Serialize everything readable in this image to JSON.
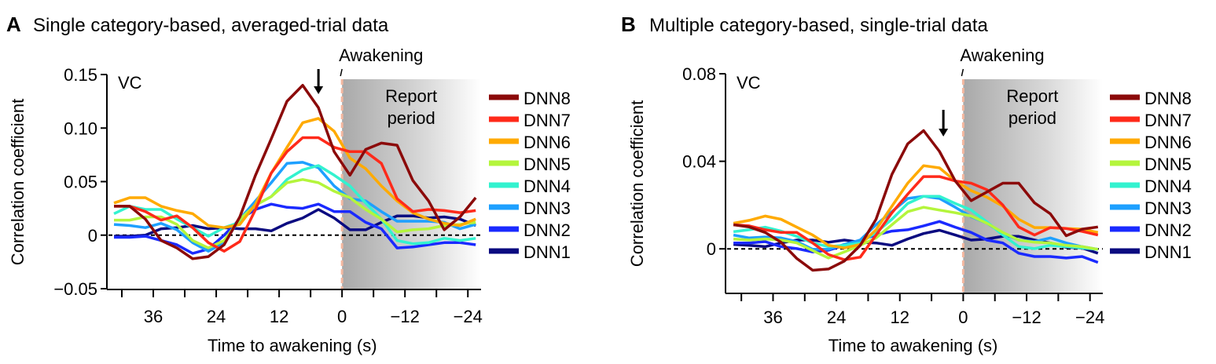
{
  "chart_data": [
    {
      "type": "line",
      "panel_letter": "A",
      "title": "Single category-based, averaged-trial data",
      "region_label": "VC",
      "awakening_label": "Awakening",
      "report_label_lines": [
        "Report",
        "period"
      ],
      "xlabel": "Time to awakening (s)",
      "ylabel": "Correlation coefficient",
      "xlim": [
        45,
        -26
      ],
      "ylim": [
        -0.05,
        0.15
      ],
      "xticks": [
        42,
        36,
        30,
        24,
        18,
        12,
        6,
        0,
        -6,
        -12,
        -18,
        -24
      ],
      "xtick_labels": [
        {
          "v": 36,
          "t": "36"
        },
        {
          "v": 24,
          "t": "24"
        },
        {
          "v": 12,
          "t": "12"
        },
        {
          "v": 0,
          "t": "0"
        },
        {
          "v": -12,
          "t": "−12"
        },
        {
          "v": -24,
          "t": "−24"
        }
      ],
      "yticks": [
        {
          "v": 0.15,
          "t": "0.15"
        },
        {
          "v": 0.1,
          "t": "0.10"
        },
        {
          "v": 0.05,
          "t": "0.05"
        },
        {
          "v": 0,
          "t": "0"
        },
        {
          "v": -0.05,
          "t": "−0.05"
        }
      ],
      "arrow_at": 4.5,
      "report_period": [
        0,
        -26
      ],
      "x": [
        43.5,
        40.5,
        37.5,
        34.5,
        31.5,
        28.5,
        25.5,
        22.5,
        19.5,
        16.5,
        13.5,
        10.5,
        7.5,
        4.5,
        1.5,
        -1.5,
        -4.5,
        -7.5,
        -10.5,
        -13.5,
        -16.5,
        -19.5,
        -22.5,
        -25.5
      ],
      "series": [
        {
          "name": "DNN8",
          "color": "#8b0a0a",
          "values": [
            0.027,
            0.027,
            0.015,
            -0.005,
            -0.012,
            -0.022,
            -0.02,
            -0.009,
            0.017,
            0.056,
            0.09,
            0.125,
            0.14,
            0.119,
            0.078,
            0.056,
            0.08,
            0.086,
            0.084,
            0.051,
            0.032,
            0.005,
            0.017,
            0.035
          ]
        },
        {
          "name": "DNN7",
          "color": "#ff2a1a",
          "values": [
            0.027,
            0.027,
            0.022,
            0.014,
            0.018,
            0.007,
            -0.007,
            -0.015,
            -0.006,
            0.024,
            0.058,
            0.078,
            0.091,
            0.091,
            0.082,
            0.078,
            0.078,
            0.067,
            0.034,
            0.022,
            0.024,
            0.023,
            0.021,
            0.023
          ]
        },
        {
          "name": "DNN6",
          "color": "#ffaa00",
          "values": [
            0.03,
            0.035,
            0.035,
            0.027,
            0.023,
            0.02,
            0.009,
            0.007,
            0.01,
            0.029,
            0.058,
            0.082,
            0.105,
            0.109,
            0.097,
            0.072,
            0.062,
            0.046,
            0.032,
            0.021,
            0.015,
            0.011,
            0.009,
            0.015
          ]
        },
        {
          "name": "DNN5",
          "color": "#b4f53c",
          "values": [
            0.014,
            0.014,
            0.017,
            0.017,
            0.01,
            -0.005,
            -0.012,
            -0.005,
            0.015,
            0.028,
            0.036,
            0.049,
            0.052,
            0.049,
            0.041,
            0.035,
            0.024,
            0.015,
            0.003,
            0.005,
            0.006,
            0.009,
            0.01,
            0.012
          ]
        },
        {
          "name": "DNN4",
          "color": "#33f2cf",
          "values": [
            0.02,
            0.027,
            0.024,
            0.024,
            0.015,
            0.007,
            -0.001,
            0.007,
            0.012,
            0.028,
            0.036,
            0.052,
            0.061,
            0.065,
            0.056,
            0.046,
            0.03,
            0.015,
            -0.005,
            -0.008,
            -0.007,
            -0.003,
            -0.005,
            -0.003
          ]
        },
        {
          "name": "DNN3",
          "color": "#1ea0ff",
          "values": [
            0.01,
            0.009,
            0.007,
            0.011,
            0.005,
            -0.007,
            -0.015,
            -0.007,
            0.015,
            0.032,
            0.049,
            0.067,
            0.068,
            0.063,
            0.046,
            0.034,
            0.032,
            0.022,
            0.013,
            0.013,
            0.013,
            0.012,
            0.006,
            0.01
          ]
        },
        {
          "name": "DNN2",
          "color": "#1a2aff",
          "values": [
            -0.002,
            -0.002,
            -0.001,
            -0.005,
            -0.009,
            -0.017,
            -0.013,
            0.0,
            0.015,
            0.024,
            0.029,
            0.026,
            0.025,
            0.029,
            0.022,
            0.022,
            0.012,
            0.006,
            -0.012,
            -0.011,
            -0.009,
            -0.007,
            -0.007,
            -0.009
          ]
        },
        {
          "name": "DNN1",
          "color": "#0a0a80",
          "values": [
            -0.001,
            -0.001,
            0.0,
            0.006,
            0.007,
            0.009,
            0.006,
            0.007,
            0.006,
            0.006,
            0.004,
            0.011,
            0.016,
            0.024,
            0.016,
            0.005,
            0.005,
            0.012,
            0.018,
            0.018,
            0.016,
            0.017,
            0.015,
            0.009
          ]
        }
      ]
    },
    {
      "type": "line",
      "panel_letter": "B",
      "title": "Multiple category-based, single-trial data",
      "region_label": "VC",
      "awakening_label": "Awakening",
      "report_label_lines": [
        "Report",
        "period"
      ],
      "xlabel": "Time to awakening (s)",
      "ylabel": "Correlation coefficient",
      "xlim": [
        45,
        -26
      ],
      "ylim": [
        -0.02,
        0.08
      ],
      "xticks": [
        42,
        36,
        30,
        24,
        18,
        12,
        6,
        0,
        -6,
        -12,
        -18,
        -24
      ],
      "xtick_labels": [
        {
          "v": 36,
          "t": "36"
        },
        {
          "v": 24,
          "t": "24"
        },
        {
          "v": 12,
          "t": "12"
        },
        {
          "v": 0,
          "t": "0"
        },
        {
          "v": -12,
          "t": "−12"
        },
        {
          "v": -24,
          "t": "−24"
        }
      ],
      "yticks": [
        {
          "v": 0.08,
          "t": "0.08"
        },
        {
          "v": 0.04,
          "t": "0.04"
        },
        {
          "v": 0,
          "t": "0"
        }
      ],
      "arrow_at": 4.5,
      "report_period": [
        0,
        -26
      ],
      "x": [
        43.5,
        40.5,
        37.5,
        34.5,
        31.5,
        28.5,
        25.5,
        22.5,
        19.5,
        16.5,
        13.5,
        10.5,
        7.5,
        4.5,
        1.5,
        -1.5,
        -4.5,
        -7.5,
        -10.5,
        -13.5,
        -16.5,
        -19.5,
        -22.5,
        -25.5
      ],
      "series": [
        {
          "name": "DNN8",
          "color": "#8b0a0a",
          "values": [
            0.011,
            0.01,
            0.0075,
            0.003,
            -0.0044,
            -0.0098,
            -0.0092,
            -0.0056,
            0.0016,
            0.0135,
            0.034,
            0.048,
            0.054,
            0.0445,
            0.031,
            0.022,
            0.026,
            0.03,
            0.03,
            0.021,
            0.016,
            0.006,
            0.009,
            0.01
          ]
        },
        {
          "name": "DNN7",
          "color": "#ff2a1a",
          "values": [
            0.011,
            0.0105,
            0.0087,
            0.0075,
            0.0075,
            0.0027,
            -0.0026,
            -0.005,
            -0.0038,
            0.0063,
            0.0165,
            0.025,
            0.033,
            0.033,
            0.031,
            0.03,
            0.027,
            0.02,
            0.01,
            0.0063,
            0.0097,
            0.0093,
            0.008,
            0.0063
          ]
        },
        {
          "name": "DNN6",
          "color": "#ffaa00",
          "values": [
            0.0117,
            0.013,
            0.015,
            0.0135,
            0.0099,
            0.0063,
            0.0016,
            0.0004,
            0.002,
            0.0087,
            0.0195,
            0.03,
            0.038,
            0.037,
            0.031,
            0.0266,
            0.0236,
            0.0195,
            0.0135,
            0.0097,
            0.0097,
            0.0093,
            0.009,
            0.0075
          ]
        },
        {
          "name": "DNN5",
          "color": "#b4f53c",
          "values": [
            0.0045,
            0.004,
            0.0045,
            0.004,
            0.0027,
            -0.0008,
            -0.0042,
            -0.0014,
            0.0016,
            0.005,
            0.011,
            0.017,
            0.019,
            0.0177,
            0.0165,
            0.015,
            0.0117,
            0.0075,
            0.004,
            0.003,
            0.0027,
            0.0016,
            0.001,
            -0.0002
          ]
        },
        {
          "name": "DNN4",
          "color": "#33f2cf",
          "values": [
            0.0078,
            0.0087,
            0.0099,
            0.0081,
            0.0057,
            0.0027,
            0.001,
            0.0016,
            0.0027,
            0.0075,
            0.0135,
            0.0207,
            0.024,
            0.024,
            0.0207,
            0.0177,
            0.0123,
            0.0063,
            0.001,
            0.0001,
            0.0016,
            0.001,
            0.0004,
            -0.0002
          ]
        },
        {
          "name": "DNN3",
          "color": "#1ea0ff",
          "values": [
            0.0063,
            0.005,
            0.0054,
            0.005,
            0.0033,
            -0.0002,
            -0.0002,
            0.002,
            0.004,
            0.011,
            0.017,
            0.023,
            0.024,
            0.023,
            0.019,
            0.0147,
            0.0117,
            0.007,
            0.004,
            0.0033,
            0.005,
            0.0027,
            0.001,
            -0.0002
          ]
        },
        {
          "name": "DNN2",
          "color": "#1a2aff",
          "values": [
            0.0027,
            0.0027,
            0.0033,
            0.001,
            0.0001,
            -0.0014,
            -0.0006,
            0.0016,
            0.004,
            0.0063,
            0.0081,
            0.0087,
            0.0105,
            0.0125,
            0.0099,
            0.0075,
            0.004,
            0.0027,
            -0.002,
            -0.0035,
            -0.0035,
            -0.0042,
            -0.0035,
            -0.0062
          ]
        },
        {
          "name": "DNN1",
          "color": "#0a0a80",
          "values": [
            0.002,
            0.0016,
            0.001,
            0.0027,
            0.004,
            0.004,
            0.003,
            0.004,
            0.003,
            0.0027,
            0.0016,
            0.0045,
            0.007,
            0.0085,
            0.0063,
            0.004,
            0.0045,
            0.0057,
            0.0057,
            0.004,
            0.0027,
            0.0007,
            0.0004,
            -0.002
          ]
        }
      ]
    }
  ]
}
